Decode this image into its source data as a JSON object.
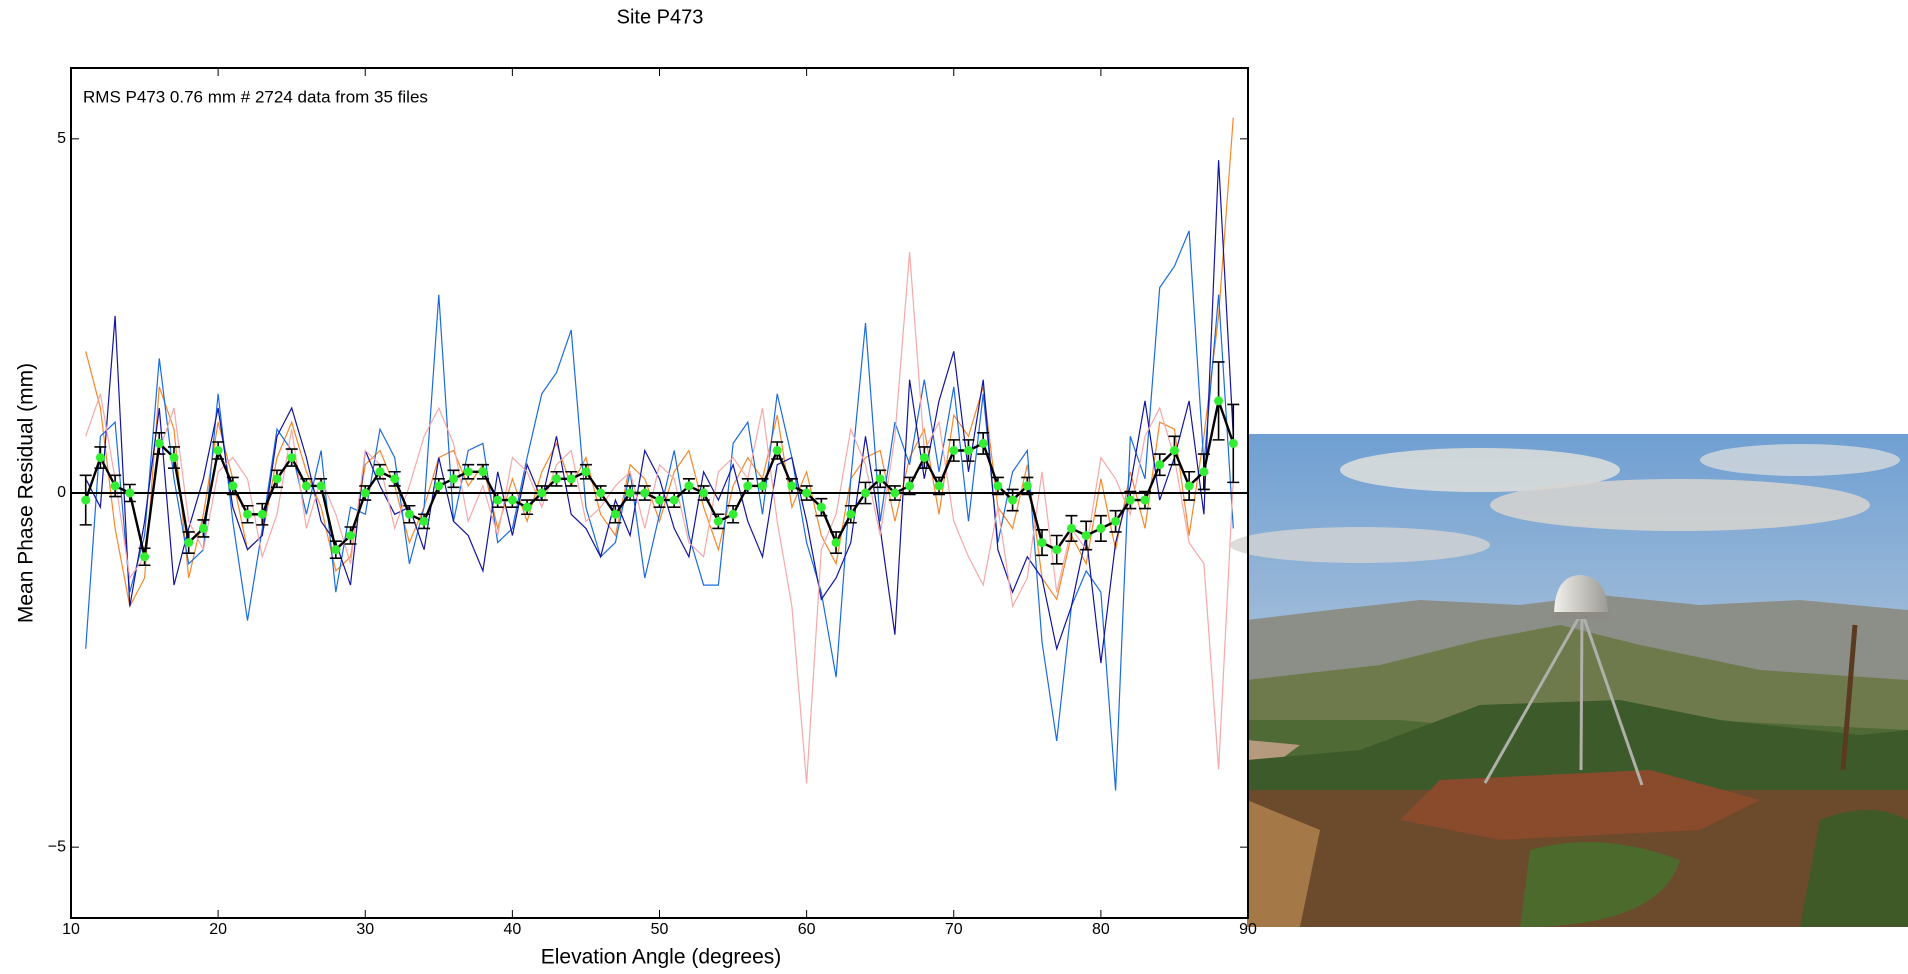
{
  "chart_data": {
    "type": "line",
    "title": "Site P473",
    "annotation": "RMS P473 0.76 mm # 2724 data from 35 files",
    "xlabel": "Elevation Angle (degrees)",
    "ylabel": "Mean Phase Residual (mm)",
    "xlim": [
      10,
      90
    ],
    "ylim": [
      -6,
      6
    ],
    "xticks": [
      10,
      20,
      30,
      40,
      50,
      60,
      70,
      80,
      90
    ],
    "yticks": [
      {
        "value": -5,
        "label": "−5"
      },
      0,
      5
    ],
    "hline": 0,
    "x": [
      11,
      12,
      13,
      14,
      15,
      16,
      17,
      18,
      19,
      20,
      21,
      22,
      23,
      24,
      25,
      26,
      27,
      28,
      29,
      30,
      31,
      32,
      33,
      34,
      35,
      36,
      37,
      38,
      39,
      40,
      41,
      42,
      43,
      44,
      45,
      46,
      47,
      48,
      49,
      50,
      51,
      52,
      53,
      54,
      55,
      56,
      57,
      58,
      59,
      60,
      61,
      62,
      63,
      64,
      65,
      66,
      67,
      68,
      69,
      70,
      71,
      72,
      73,
      74,
      75,
      76,
      77,
      78,
      79,
      80,
      81,
      82,
      83,
      84,
      85,
      86,
      87,
      88,
      89
    ],
    "series": [
      {
        "color": "#f5882a",
        "values": [
          2.0,
          1.2,
          -0.5,
          -1.6,
          -1.2,
          1.5,
          0.9,
          -1.2,
          -0.3,
          1.0,
          0.2,
          -0.8,
          -0.6,
          0.5,
          1.0,
          0.3,
          -0.2,
          -1.1,
          -0.9,
          0.4,
          0.6,
          0.1,
          -0.7,
          -0.2,
          0.5,
          0.6,
          0.1,
          0.4,
          -0.5,
          0.2,
          -0.4,
          0.3,
          0.7,
          0.1,
          0.5,
          -0.3,
          -0.6,
          0.4,
          0.2,
          -0.4,
          0.3,
          0.6,
          -0.2,
          -0.8,
          0.1,
          0.5,
          0.2,
          1.1,
          -0.2,
          0.3,
          -0.6,
          -1.0,
          0.2,
          0.5,
          0.6,
          -0.4,
          0.5,
          0.9,
          -0.3,
          1.1,
          0.8,
          1.5,
          -0.2,
          -0.5,
          0.4,
          -1.2,
          -1.5,
          -0.6,
          -1.0,
          0.2,
          -0.8,
          0.3,
          -0.5,
          1.0,
          0.9,
          -0.6,
          0.8,
          2.5,
          5.3
        ]
      },
      {
        "color": "#1a6be0",
        "values": [
          -2.2,
          0.8,
          1.0,
          -1.4,
          -0.6,
          1.9,
          0.2,
          -1.0,
          -0.8,
          1.4,
          -0.4,
          -1.8,
          -0.5,
          0.9,
          0.6,
          -0.3,
          0.6,
          -1.4,
          -0.2,
          -0.3,
          0.9,
          0.5,
          -1.0,
          -0.2,
          2.8,
          -0.4,
          0.6,
          0.7,
          -0.7,
          -0.5,
          0.5,
          1.4,
          1.7,
          2.3,
          -0.2,
          -0.9,
          -0.7,
          0.3,
          -1.2,
          -0.3,
          0.6,
          -0.6,
          -1.3,
          -1.3,
          0.7,
          1.0,
          -0.3,
          1.4,
          0.5,
          -0.7,
          -1.4,
          -2.6,
          0.2,
          2.4,
          -0.4,
          1.0,
          0.4,
          1.6,
          0.3,
          1.5,
          -0.4,
          1.4,
          -0.7,
          0.3,
          0.6,
          -2.1,
          -3.5,
          -1.6,
          -1.1,
          -1.4,
          -4.2,
          0.8,
          0.2,
          2.9,
          3.2,
          3.7,
          0.4,
          2.8,
          -0.5
        ]
      },
      {
        "color": "#1414a0",
        "values": [
          0.2,
          -0.2,
          2.5,
          -1.6,
          -0.4,
          1.2,
          -1.3,
          -0.5,
          0.2,
          1.2,
          -0.2,
          -0.8,
          -0.6,
          0.8,
          1.2,
          0.5,
          -0.4,
          -0.7,
          -1.3,
          0.6,
          0.1,
          -0.3,
          -0.2,
          -0.8,
          0.5,
          -0.4,
          -0.6,
          -1.1,
          0.3,
          -0.6,
          0.4,
          -0.1,
          0.8,
          -0.3,
          -0.5,
          -0.9,
          -0.1,
          -0.6,
          0.6,
          0.2,
          -0.5,
          -0.9,
          0.3,
          -0.1,
          0.4,
          -0.4,
          -0.9,
          0.4,
          0.5,
          -0.4,
          -1.5,
          -1.2,
          -0.7,
          0.8,
          -0.5,
          -2.0,
          1.6,
          0.2,
          1.3,
          2.0,
          0.3,
          1.6,
          -0.8,
          -1.4,
          -0.9,
          -1.2,
          -2.2,
          -1.6,
          -0.6,
          -2.4,
          -0.7,
          0.1,
          1.3,
          -0.1,
          0.5,
          1.3,
          -0.3,
          4.7,
          0.8
        ]
      },
      {
        "color": "#f7a8a8",
        "values": [
          0.8,
          1.4,
          0.2,
          -1.2,
          -0.9,
          0.6,
          1.2,
          -0.4,
          -0.8,
          0.3,
          0.5,
          0.2,
          -0.9,
          -0.3,
          0.9,
          -0.5,
          0.2,
          -0.3,
          -1.0,
          0.6,
          0.4,
          -0.5,
          0.1,
          0.8,
          1.2,
          0.7,
          -0.4,
          0.1,
          -0.6,
          0.5,
          0.3,
          -0.2,
          0.4,
          0.6,
          -0.4,
          -0.2,
          0.1,
          0.3,
          -0.5,
          0.4,
          0.2,
          -0.7,
          -0.9,
          0.3,
          0.5,
          0.2,
          1.2,
          -0.4,
          -1.6,
          -4.1,
          -0.8,
          -0.3,
          0.9,
          0.4,
          -0.6,
          0.8,
          3.4,
          0.6,
          1.0,
          -0.4,
          -0.9,
          -1.3,
          -0.2,
          -1.6,
          -1.2,
          0.3,
          -1.4,
          -0.5,
          -0.8,
          0.5,
          0.2,
          -0.3,
          0.8,
          1.2,
          0.5,
          -0.7,
          -1.0,
          -3.9,
          0.2
        ]
      }
    ],
    "mean": {
      "color": "#000000",
      "marker_color": "#33ee33",
      "values": [
        -0.1,
        0.5,
        0.1,
        0,
        -0.9,
        0.7,
        0.5,
        -0.7,
        -0.5,
        0.6,
        0.1,
        -0.3,
        -0.3,
        0.2,
        0.5,
        0.1,
        0.1,
        -0.8,
        -0.6,
        0,
        0.3,
        0.2,
        -0.3,
        -0.4,
        0.1,
        0.2,
        0.3,
        0.3,
        -0.1,
        -0.1,
        -0.2,
        0,
        0.2,
        0.2,
        0.3,
        0,
        -0.3,
        0,
        0,
        -0.1,
        -0.1,
        0.1,
        0,
        -0.4,
        -0.3,
        0.1,
        0.1,
        0.6,
        0.1,
        0,
        -0.2,
        -0.7,
        -0.3,
        0,
        0.2,
        0,
        0.1,
        0.5,
        0.1,
        0.6,
        0.6,
        0.7,
        0.1,
        -0.1,
        0.1,
        -0.7,
        -0.8,
        -0.5,
        -0.6,
        -0.5,
        -0.4,
        -0.1,
        -0.1,
        0.4,
        0.6,
        0.1,
        0.3,
        1.3,
        0.7
      ],
      "errors": [
        0.35,
        0.15,
        0.15,
        0.12,
        0.12,
        0.15,
        0.15,
        0.15,
        0.12,
        0.12,
        0.12,
        0.12,
        0.15,
        0.12,
        0.12,
        0.1,
        0.1,
        0.12,
        0.12,
        0.1,
        0.1,
        0.1,
        0.12,
        0.1,
        0.1,
        0.12,
        0.1,
        0.1,
        0.1,
        0.1,
        0.1,
        0.1,
        0.1,
        0.1,
        0.1,
        0.1,
        0.12,
        0.1,
        0.1,
        0.1,
        0.1,
        0.1,
        0.1,
        0.1,
        0.12,
        0.1,
        0.1,
        0.12,
        0.1,
        0.1,
        0.12,
        0.15,
        0.12,
        0.15,
        0.12,
        0.1,
        0.12,
        0.15,
        0.12,
        0.15,
        0.15,
        0.15,
        0.12,
        0.15,
        0.12,
        0.18,
        0.2,
        0.18,
        0.2,
        0.18,
        0.15,
        0.12,
        0.12,
        0.15,
        0.2,
        0.2,
        0.25,
        0.55,
        0.55
      ]
    }
  }
}
